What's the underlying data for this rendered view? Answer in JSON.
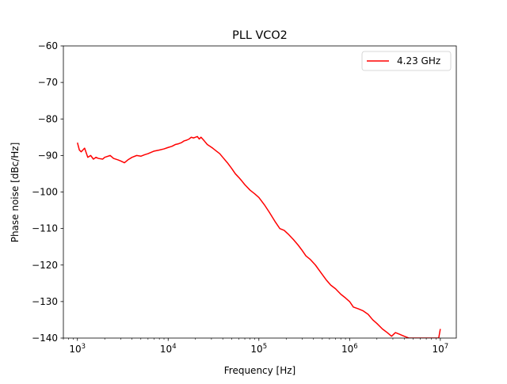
{
  "chart_data": {
    "type": "line",
    "title": "PLL VCO2",
    "xlabel": "Frequency [Hz]",
    "ylabel": "Phase noise [dBc/Hz]",
    "xscale": "log",
    "xlim": [
      700,
      15000000
    ],
    "ylim": [
      -140,
      -60
    ],
    "x_ticks": [
      {
        "value": 1000,
        "base": "10",
        "exp": "3"
      },
      {
        "value": 10000,
        "base": "10",
        "exp": "4"
      },
      {
        "value": 100000,
        "base": "10",
        "exp": "5"
      },
      {
        "value": 1000000,
        "base": "10",
        "exp": "6"
      },
      {
        "value": 10000000,
        "base": "10",
        "exp": "7"
      }
    ],
    "y_ticks": [
      {
        "value": -60,
        "label": "−60"
      },
      {
        "value": -70,
        "label": "−70"
      },
      {
        "value": -80,
        "label": "−80"
      },
      {
        "value": -90,
        "label": "−90"
      },
      {
        "value": -100,
        "label": "−100"
      },
      {
        "value": -110,
        "label": "−110"
      },
      {
        "value": -120,
        "label": "−120"
      },
      {
        "value": -130,
        "label": "−130"
      },
      {
        "value": -140,
        "label": "−140"
      }
    ],
    "grid": false,
    "legend_position": "top-right",
    "series": [
      {
        "name": "4.23 GHz",
        "color": "#ff0000",
        "points": [
          [
            1000,
            -86.5
          ],
          [
            1050,
            -88.5
          ],
          [
            1100,
            -89.0
          ],
          [
            1200,
            -88.0
          ],
          [
            1300,
            -90.5
          ],
          [
            1400,
            -90.0
          ],
          [
            1500,
            -91.0
          ],
          [
            1600,
            -90.5
          ],
          [
            1700,
            -90.8
          ],
          [
            1900,
            -91.0
          ],
          [
            2000,
            -90.5
          ],
          [
            2300,
            -90.0
          ],
          [
            2500,
            -90.8
          ],
          [
            2800,
            -91.2
          ],
          [
            3000,
            -91.5
          ],
          [
            3300,
            -92.0
          ],
          [
            3600,
            -91.2
          ],
          [
            4000,
            -90.5
          ],
          [
            4500,
            -90.0
          ],
          [
            5000,
            -90.2
          ],
          [
            5500,
            -89.8
          ],
          [
            6000,
            -89.5
          ],
          [
            7000,
            -88.8
          ],
          [
            8000,
            -88.5
          ],
          [
            9000,
            -88.2
          ],
          [
            10000,
            -87.8
          ],
          [
            11000,
            -87.5
          ],
          [
            12000,
            -87.0
          ],
          [
            13000,
            -86.8
          ],
          [
            14000,
            -86.5
          ],
          [
            15000,
            -86.0
          ],
          [
            16000,
            -85.8
          ],
          [
            17000,
            -85.5
          ],
          [
            18000,
            -85.0
          ],
          [
            19000,
            -85.2
          ],
          [
            20000,
            -85.0
          ],
          [
            21000,
            -84.8
          ],
          [
            22000,
            -85.5
          ],
          [
            23000,
            -85.0
          ],
          [
            25000,
            -86.0
          ],
          [
            27000,
            -87.0
          ],
          [
            29000,
            -87.5
          ],
          [
            31000,
            -88.0
          ],
          [
            34000,
            -88.8
          ],
          [
            37000,
            -89.5
          ],
          [
            40000,
            -90.5
          ],
          [
            45000,
            -92.0
          ],
          [
            50000,
            -93.5
          ],
          [
            55000,
            -95.0
          ],
          [
            60000,
            -96.0
          ],
          [
            65000,
            -97.0
          ],
          [
            70000,
            -98.0
          ],
          [
            80000,
            -99.5
          ],
          [
            90000,
            -100.5
          ],
          [
            100000,
            -101.5
          ],
          [
            115000,
            -103.5
          ],
          [
            130000,
            -105.5
          ],
          [
            150000,
            -108.0
          ],
          [
            170000,
            -110.0
          ],
          [
            190000,
            -110.5
          ],
          [
            210000,
            -111.5
          ],
          [
            240000,
            -113.0
          ],
          [
            270000,
            -114.5
          ],
          [
            300000,
            -116.0
          ],
          [
            330000,
            -117.5
          ],
          [
            370000,
            -118.5
          ],
          [
            420000,
            -120.0
          ],
          [
            480000,
            -122.0
          ],
          [
            550000,
            -124.0
          ],
          [
            620000,
            -125.5
          ],
          [
            700000,
            -126.5
          ],
          [
            800000,
            -128.0
          ],
          [
            900000,
            -129.0
          ],
          [
            1000000,
            -130.0
          ],
          [
            1100000,
            -131.5
          ],
          [
            1250000,
            -132.0
          ],
          [
            1400000,
            -132.5
          ],
          [
            1600000,
            -133.5
          ],
          [
            1800000,
            -135.0
          ],
          [
            2000000,
            -136.0
          ],
          [
            2300000,
            -137.5
          ],
          [
            2600000,
            -138.5
          ],
          [
            2900000,
            -139.5
          ],
          [
            3200000,
            -138.5
          ],
          [
            3600000,
            -139.0
          ],
          [
            4000000,
            -139.5
          ],
          [
            4500000,
            -140.0
          ],
          [
            5000000,
            -140.0
          ],
          [
            5600000,
            -140.0
          ],
          [
            6200000,
            -140.0
          ],
          [
            7000000,
            -140.0
          ],
          [
            8000000,
            -140.0
          ],
          [
            9000000,
            -140.0
          ],
          [
            9600000,
            -140.0
          ],
          [
            10000000,
            -137.5
          ]
        ]
      }
    ]
  }
}
